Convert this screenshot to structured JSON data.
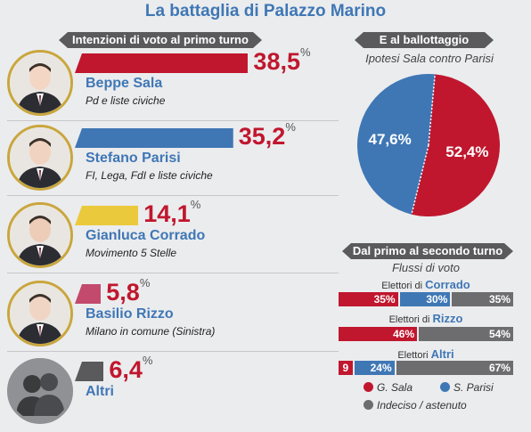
{
  "title": "La battaglia di Palazzo Marino",
  "colors": {
    "sala": "#c0172e",
    "parisi": "#3f77b5",
    "corrado": "#ebc93c",
    "rizzo": "#c34a6d",
    "altri": "#5a5a5c",
    "undecided": "#6d6d6f"
  },
  "chart_data": [
    {
      "type": "bar",
      "title": "Intenzioni di voto al primo turno",
      "categories": [
        "Beppe Sala",
        "Stefano Parisi",
        "Gianluca Corrado",
        "Basilio Rizzo",
        "Altri"
      ],
      "values": [
        38.5,
        35.2,
        14.1,
        5.8,
        6.4
      ],
      "value_labels": [
        "38,5",
        "35,2",
        "14,1",
        "5,8",
        "6,4"
      ],
      "unit": "%",
      "subtitles": [
        "Pd e liste civiche",
        "FI, Lega, FdI e liste civiche",
        "Movimento 5 Stelle",
        "Milano in comune (Sinistra)",
        ""
      ],
      "bar_colors": [
        "#c0172e",
        "#3f77b5",
        "#ebc93c",
        "#c34a6d",
        "#5a5a5c"
      ]
    },
    {
      "type": "pie",
      "title": "E al ballottaggio",
      "subtitle": "Ipotesi Sala contro Parisi",
      "labels": [
        "G. Sala",
        "S. Parisi"
      ],
      "values": [
        52.4,
        47.6
      ],
      "value_labels": [
        "52,4%",
        "47,6%"
      ],
      "colors": [
        "#c0172e",
        "#3f77b5"
      ]
    },
    {
      "type": "bar",
      "stacked": true,
      "horizontal": true,
      "title": "Dal primo al secondo turno",
      "subtitle": "Flussi di voto",
      "rows": [
        {
          "prefix": "Elettori di",
          "name": "Corrado",
          "values": [
            35,
            30,
            35
          ],
          "labels": [
            "35%",
            "30%",
            "35%"
          ]
        },
        {
          "prefix": "Elettori di",
          "name": "Rizzo",
          "values": [
            46,
            0,
            54
          ],
          "labels": [
            "46%",
            "",
            "54%"
          ]
        },
        {
          "prefix": "Elettori",
          "name": "Altri",
          "values": [
            9,
            24,
            67
          ],
          "labels": [
            "9",
            "24%",
            "67%"
          ]
        }
      ],
      "series": [
        {
          "name": "G. Sala",
          "color": "#c0172e"
        },
        {
          "name": "S. Parisi",
          "color": "#3f77b5"
        },
        {
          "name": "Indeciso / astenuto",
          "color": "#6d6d6f"
        }
      ]
    }
  ]
}
